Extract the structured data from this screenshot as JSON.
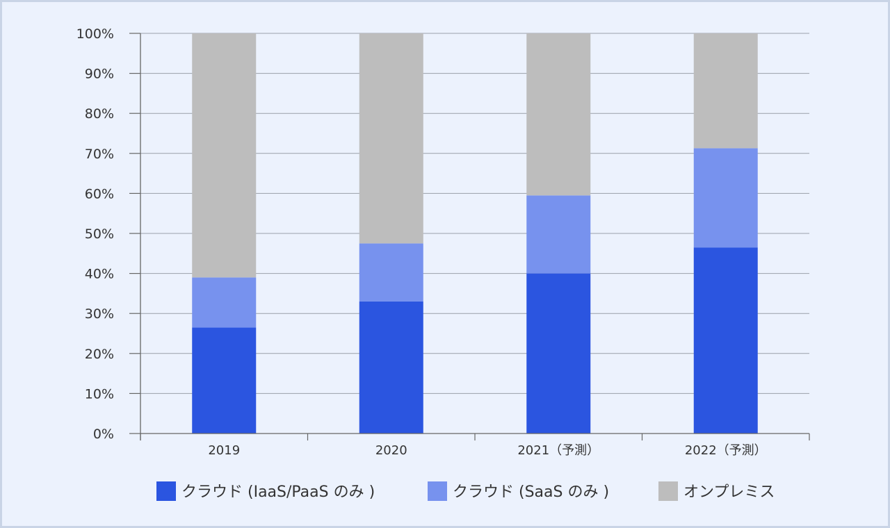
{
  "chart_data": {
    "type": "bar",
    "stacked": true,
    "categories": [
      "2019",
      "2020",
      "2021（予測）",
      "2022（予測）"
    ],
    "series": [
      {
        "name": "クラウド (IaaS/PaaS のみ )",
        "color": "#2b55e0",
        "values": [
          26.5,
          33.0,
          40.0,
          46.5
        ]
      },
      {
        "name": "クラウド (SaaS のみ )",
        "color": "#7792ee",
        "values": [
          12.5,
          14.5,
          19.5,
          24.8
        ]
      },
      {
        "name": "オンプレミス",
        "color": "#bdbdbd",
        "values": [
          61.0,
          52.5,
          40.5,
          28.7
        ]
      }
    ],
    "yticks": [
      "0%",
      "10%",
      "20%",
      "30%",
      "40%",
      "50%",
      "60%",
      "70%",
      "80%",
      "90%",
      "100%"
    ],
    "ylim": [
      0,
      100
    ],
    "grid": true,
    "legend": "bottom"
  }
}
